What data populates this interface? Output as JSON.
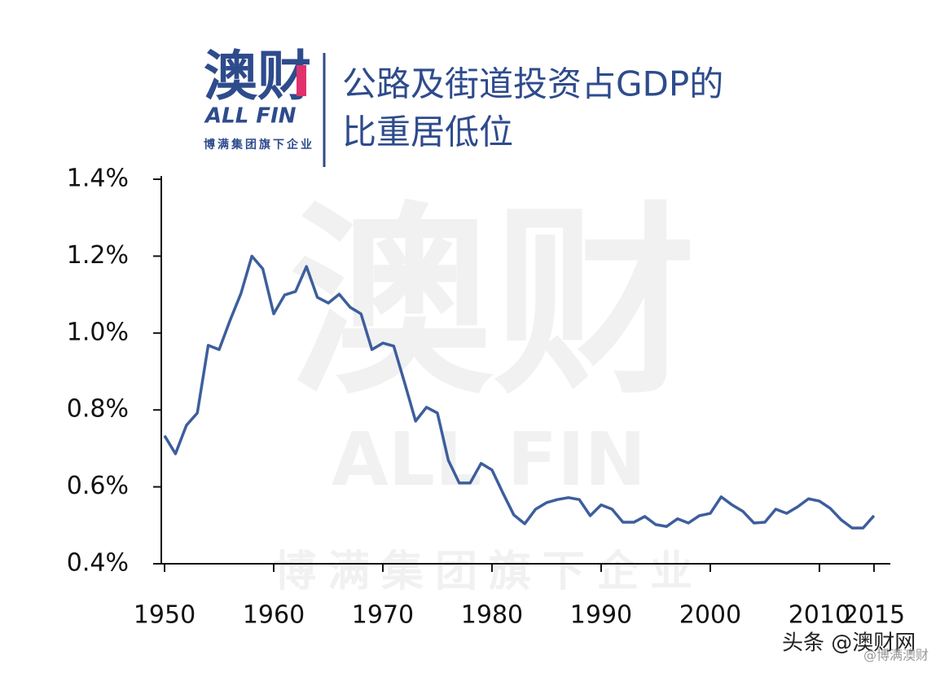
{
  "logo": {
    "mark": "澳财",
    "name": "ALL FIN",
    "tagline": "博满集团旗下企业"
  },
  "watermark": {
    "mark": "澳财",
    "name": "ALL FIN",
    "tagline": "博满集团旗下企业"
  },
  "credit": {
    "source": "头条 @澳财网",
    "handle": "@博满澳财"
  },
  "chart_data": {
    "type": "line",
    "title_lines": [
      "公路及街道投资占GDP的",
      "比重居低位"
    ],
    "x": [
      1950,
      1951,
      1952,
      1953,
      1954,
      1955,
      1956,
      1957,
      1958,
      1959,
      1960,
      1961,
      1962,
      1963,
      1964,
      1965,
      1966,
      1967,
      1968,
      1969,
      1970,
      1971,
      1972,
      1973,
      1974,
      1975,
      1976,
      1977,
      1978,
      1979,
      1980,
      1981,
      1982,
      1983,
      1984,
      1985,
      1986,
      1987,
      1988,
      1989,
      1990,
      1991,
      1992,
      1993,
      1994,
      1995,
      1996,
      1997,
      1998,
      1999,
      2000,
      2001,
      2002,
      2003,
      2004,
      2005,
      2006,
      2007,
      2008,
      2009,
      2010,
      2011,
      2012,
      2013,
      2014,
      2015
    ],
    "series": [
      {
        "color": "#3d5e9d",
        "values": [
          0.733,
          0.686,
          0.76,
          0.792,
          0.968,
          0.957,
          1.033,
          1.103,
          1.2,
          1.167,
          1.05,
          1.099,
          1.108,
          1.173,
          1.093,
          1.078,
          1.101,
          1.067,
          1.05,
          0.957,
          0.974,
          0.966,
          0.87,
          0.771,
          0.807,
          0.792,
          0.669,
          0.61,
          0.61,
          0.661,
          0.644,
          0.584,
          0.527,
          0.504,
          0.542,
          0.559,
          0.567,
          0.572,
          0.567,
          0.525,
          0.553,
          0.542,
          0.508,
          0.508,
          0.523,
          0.502,
          0.497,
          0.517,
          0.506,
          0.525,
          0.531,
          0.574,
          0.553,
          0.536,
          0.506,
          0.508,
          0.542,
          0.531,
          0.548,
          0.569,
          0.563,
          0.544,
          0.514,
          0.493,
          0.493,
          0.525
        ]
      }
    ],
    "xlim": [
      1949.7,
      2016.5
    ],
    "xticks": [
      1950,
      1960,
      1970,
      1980,
      1990,
      2000,
      2010,
      2015
    ],
    "ylim": [
      0.4,
      1.4
    ],
    "yticks": [
      {
        "value": 0.4,
        "label": "0.4%"
      },
      {
        "value": 0.6,
        "label": "0.6%"
      },
      {
        "value": 0.8,
        "label": "0.8%"
      },
      {
        "value": 1.0,
        "label": "1.0%"
      },
      {
        "value": 1.2,
        "label": "1.2%"
      },
      {
        "value": 1.4,
        "label": "1.4%"
      }
    ]
  }
}
